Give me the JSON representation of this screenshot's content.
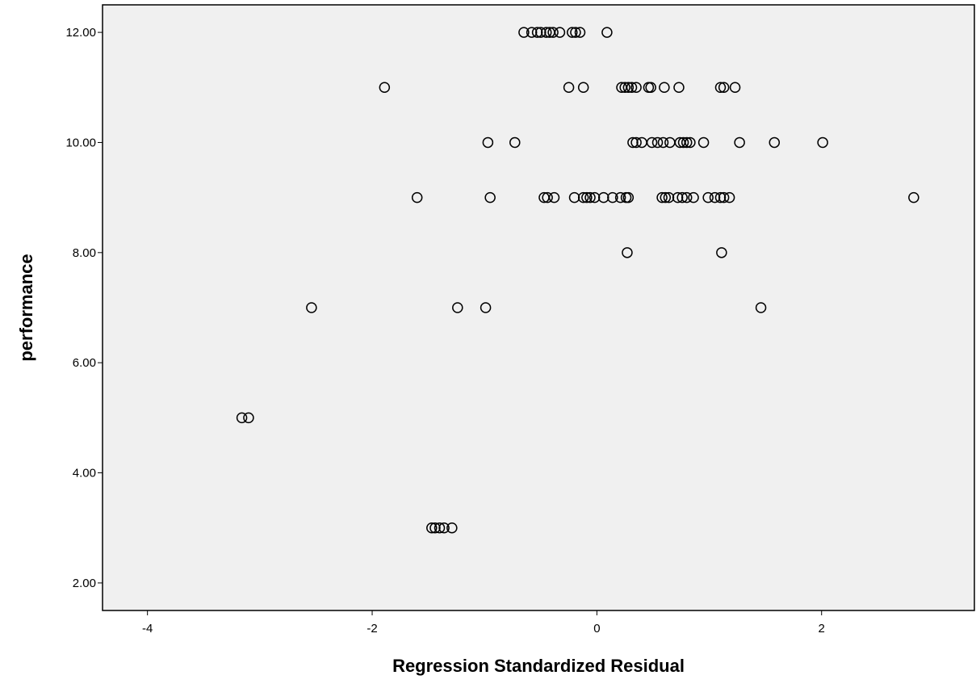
{
  "chart_data": {
    "type": "scatter",
    "title": "",
    "xlabel": "Regression Standardized Residual",
    "ylabel": "performance",
    "xlim": [
      -4.4,
      3.36
    ],
    "ylim": [
      1.5,
      12.5
    ],
    "x_ticks": [
      -4,
      -2,
      0,
      2
    ],
    "x_tick_labels": [
      "-4",
      "-2",
      "0",
      "2"
    ],
    "y_ticks": [
      2,
      4,
      6,
      8,
      10,
      12
    ],
    "y_tick_labels": [
      "2.00",
      "4.00",
      "6.00",
      "8.00",
      "10.00",
      "12.00"
    ],
    "grid": false,
    "plot_background": "#f0f0f0",
    "marker_color": "#000000",
    "marker": "open-circle",
    "points": [
      [
        -0.65,
        12
      ],
      [
        -0.58,
        12
      ],
      [
        -0.53,
        12
      ],
      [
        -0.5,
        12
      ],
      [
        -0.45,
        12
      ],
      [
        -0.42,
        12
      ],
      [
        -0.39,
        12
      ],
      [
        -0.33,
        12
      ],
      [
        -0.22,
        12
      ],
      [
        -0.19,
        12
      ],
      [
        -0.15,
        12
      ],
      [
        0.09,
        12
      ],
      [
        -1.89,
        11
      ],
      [
        -0.25,
        11
      ],
      [
        -0.12,
        11
      ],
      [
        0.22,
        11
      ],
      [
        0.25,
        11
      ],
      [
        0.28,
        11
      ],
      [
        0.31,
        11
      ],
      [
        0.35,
        11
      ],
      [
        0.46,
        11
      ],
      [
        0.48,
        11
      ],
      [
        0.6,
        11
      ],
      [
        0.73,
        11
      ],
      [
        1.1,
        11
      ],
      [
        1.13,
        11
      ],
      [
        1.23,
        11
      ],
      [
        -0.97,
        10
      ],
      [
        -0.73,
        10
      ],
      [
        0.32,
        10
      ],
      [
        0.35,
        10
      ],
      [
        0.4,
        10
      ],
      [
        0.49,
        10
      ],
      [
        0.54,
        10
      ],
      [
        0.59,
        10
      ],
      [
        0.65,
        10
      ],
      [
        0.74,
        10
      ],
      [
        0.77,
        10
      ],
      [
        0.8,
        10
      ],
      [
        0.83,
        10
      ],
      [
        0.95,
        10
      ],
      [
        1.27,
        10
      ],
      [
        1.58,
        10
      ],
      [
        2.01,
        10
      ],
      [
        -1.6,
        9
      ],
      [
        -0.95,
        9
      ],
      [
        -0.47,
        9
      ],
      [
        -0.44,
        9
      ],
      [
        -0.38,
        9
      ],
      [
        -0.2,
        9
      ],
      [
        -0.12,
        9
      ],
      [
        -0.09,
        9
      ],
      [
        -0.06,
        9
      ],
      [
        -0.02,
        9
      ],
      [
        0.06,
        9
      ],
      [
        0.14,
        9
      ],
      [
        0.21,
        9
      ],
      [
        0.26,
        9
      ],
      [
        0.28,
        9
      ],
      [
        0.58,
        9
      ],
      [
        0.61,
        9
      ],
      [
        0.64,
        9
      ],
      [
        0.72,
        9
      ],
      [
        0.76,
        9
      ],
      [
        0.8,
        9
      ],
      [
        0.86,
        9
      ],
      [
        0.99,
        9
      ],
      [
        1.05,
        9
      ],
      [
        1.1,
        9
      ],
      [
        1.13,
        9
      ],
      [
        1.18,
        9
      ],
      [
        2.82,
        9
      ],
      [
        0.27,
        8
      ],
      [
        1.11,
        8
      ],
      [
        -2.54,
        7
      ],
      [
        -1.24,
        7
      ],
      [
        -0.99,
        7
      ],
      [
        1.46,
        7
      ],
      [
        -3.16,
        5
      ],
      [
        -3.1,
        5
      ],
      [
        -1.47,
        3
      ],
      [
        -1.44,
        3
      ],
      [
        -1.4,
        3
      ],
      [
        -1.36,
        3
      ],
      [
        -1.29,
        3
      ]
    ]
  }
}
